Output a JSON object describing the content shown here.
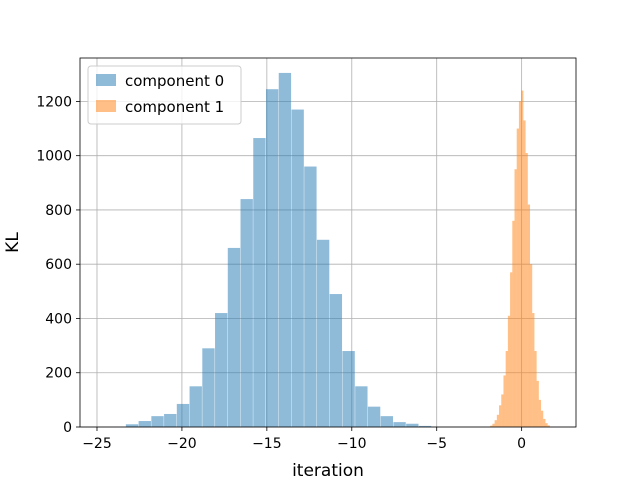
{
  "chart_data": {
    "type": "histogram",
    "xlabel": "iteration",
    "ylabel": "KL",
    "xlim": [
      -26,
      3.2
    ],
    "ylim": [
      0,
      1360
    ],
    "xticks": [
      -25,
      -20,
      -15,
      -10,
      -5,
      0
    ],
    "yticks": [
      0,
      200,
      400,
      600,
      800,
      1000,
      1200
    ],
    "grid": true,
    "legend_position": "upper-left",
    "series": [
      {
        "name": "component 0",
        "color": "#1f77b4",
        "alpha": 0.5,
        "bin_width": 0.727,
        "bins": [
          [
            -23.3,
            10
          ],
          [
            -22.55,
            22
          ],
          [
            -21.8,
            40
          ],
          [
            -21.05,
            48
          ],
          [
            -20.3,
            85
          ],
          [
            -19.55,
            150
          ],
          [
            -18.8,
            290
          ],
          [
            -18.05,
            420
          ],
          [
            -17.3,
            660
          ],
          [
            -16.55,
            840
          ],
          [
            -15.8,
            1065
          ],
          [
            -15.05,
            1245
          ],
          [
            -14.3,
            1305
          ],
          [
            -13.55,
            1170
          ],
          [
            -12.8,
            960
          ],
          [
            -12.05,
            690
          ],
          [
            -11.3,
            490
          ],
          [
            -10.55,
            280
          ],
          [
            -9.8,
            150
          ],
          [
            -9.05,
            75
          ],
          [
            -8.3,
            40
          ],
          [
            -7.55,
            18
          ],
          [
            -6.8,
            12
          ],
          [
            -6.05,
            4
          ]
        ]
      },
      {
        "name": "component 1",
        "color": "#ff7f0e",
        "alpha": 0.5,
        "bin_width": 0.132,
        "bins": [
          [
            -1.85,
            5
          ],
          [
            -1.72,
            12
          ],
          [
            -1.59,
            25
          ],
          [
            -1.46,
            45
          ],
          [
            -1.33,
            80
          ],
          [
            -1.2,
            120
          ],
          [
            -1.07,
            190
          ],
          [
            -0.94,
            280
          ],
          [
            -0.81,
            410
          ],
          [
            -0.68,
            570
          ],
          [
            -0.55,
            760
          ],
          [
            -0.42,
            950
          ],
          [
            -0.29,
            1100
          ],
          [
            -0.16,
            1200
          ],
          [
            -0.03,
            1240
          ],
          [
            0.1,
            1130
          ],
          [
            0.23,
            1010
          ],
          [
            0.36,
            820
          ],
          [
            0.49,
            600
          ],
          [
            0.62,
            420
          ],
          [
            0.75,
            280
          ],
          [
            0.88,
            170
          ],
          [
            1.01,
            100
          ],
          [
            1.14,
            60
          ],
          [
            1.27,
            30
          ],
          [
            1.4,
            14
          ],
          [
            1.53,
            6
          ]
        ]
      }
    ]
  }
}
